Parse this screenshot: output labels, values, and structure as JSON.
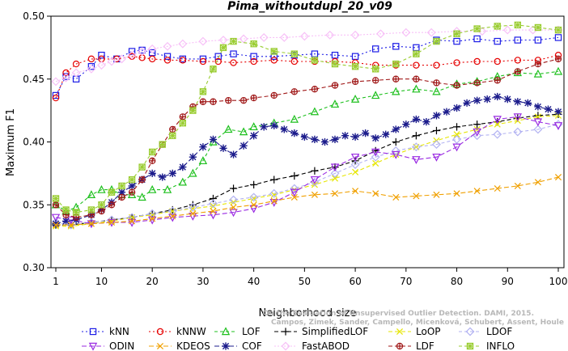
{
  "chart_data": {
    "type": "line",
    "title": "Pima_withoutdupl_20_v09",
    "xlabel": "Neighborhood size",
    "ylabel": "Maximum F1",
    "xlim": [
      1,
      100
    ],
    "ylim": [
      0.3,
      0.5
    ],
    "x_ticks": [
      "1",
      "10",
      "20",
      "30",
      "40",
      "50",
      "60",
      "70",
      "80",
      "90",
      "100"
    ],
    "y_ticks": [
      "0.30",
      "0.35",
      "0.40",
      "0.45",
      "0.50"
    ],
    "grid": false,
    "legend_position": "bottom",
    "watermark": [
      "Campos, Zimek, Sander, Campello, Micenková, Schubert, Assent, Houle",
      "On the Evaluation of Unsupervised Outlier Detection. DAMI, 2015."
    ],
    "series": [
      {
        "name": "kNN",
        "color": "#1c1ce6",
        "marker": "square",
        "dash": "2,3",
        "x": [
          1,
          3,
          5,
          8,
          10,
          13,
          16,
          18,
          20,
          23,
          26,
          30,
          33,
          36,
          40,
          44,
          48,
          52,
          56,
          60,
          64,
          68,
          72,
          76,
          80,
          84,
          88,
          92,
          96,
          100
        ],
        "y": [
          0.437,
          0.452,
          0.45,
          0.46,
          0.469,
          0.466,
          0.472,
          0.473,
          0.471,
          0.468,
          0.466,
          0.466,
          0.468,
          0.47,
          0.468,
          0.468,
          0.469,
          0.47,
          0.469,
          0.468,
          0.474,
          0.476,
          0.475,
          0.481,
          0.48,
          0.482,
          0.48,
          0.481,
          0.481,
          0.483
        ]
      },
      {
        "name": "kNNW",
        "color": "#e60000",
        "marker": "circle",
        "dash": "2,3",
        "x": [
          1,
          3,
          5,
          8,
          10,
          13,
          16,
          18,
          20,
          23,
          26,
          30,
          33,
          36,
          40,
          44,
          48,
          52,
          56,
          60,
          64,
          68,
          72,
          76,
          80,
          84,
          88,
          92,
          96,
          100
        ],
        "y": [
          0.435,
          0.455,
          0.462,
          0.466,
          0.466,
          0.466,
          0.468,
          0.467,
          0.466,
          0.465,
          0.465,
          0.464,
          0.464,
          0.463,
          0.464,
          0.465,
          0.464,
          0.464,
          0.464,
          0.463,
          0.461,
          0.461,
          0.461,
          0.461,
          0.463,
          0.464,
          0.464,
          0.465,
          0.465,
          0.469
        ]
      },
      {
        "name": "LOF",
        "color": "#1fc01f",
        "marker": "triangle",
        "dash": "4,3",
        "x": [
          1,
          3,
          5,
          8,
          10,
          12,
          14,
          16,
          18,
          20,
          23,
          26,
          28,
          30,
          32,
          35,
          38,
          40,
          44,
          48,
          52,
          56,
          60,
          64,
          68,
          72,
          76,
          80,
          84,
          88,
          92,
          96,
          100
        ],
        "y": [
          0.35,
          0.345,
          0.348,
          0.358,
          0.362,
          0.362,
          0.358,
          0.358,
          0.356,
          0.362,
          0.362,
          0.368,
          0.375,
          0.385,
          0.4,
          0.41,
          0.408,
          0.412,
          0.415,
          0.418,
          0.424,
          0.43,
          0.434,
          0.437,
          0.44,
          0.442,
          0.44,
          0.446,
          0.448,
          0.452,
          0.455,
          0.454,
          0.456
        ]
      },
      {
        "name": "SimplifiedLOF",
        "color": "#000000",
        "marker": "plus",
        "dash": "5,3",
        "x": [
          1,
          4,
          8,
          12,
          16,
          20,
          24,
          28,
          32,
          36,
          40,
          44,
          48,
          52,
          56,
          60,
          64,
          68,
          72,
          76,
          80,
          84,
          88,
          92,
          96,
          100
        ],
        "y": [
          0.334,
          0.334,
          0.336,
          0.338,
          0.34,
          0.343,
          0.346,
          0.35,
          0.355,
          0.363,
          0.366,
          0.37,
          0.373,
          0.377,
          0.38,
          0.385,
          0.393,
          0.4,
          0.405,
          0.409,
          0.412,
          0.414,
          0.416,
          0.419,
          0.421,
          0.422
        ]
      },
      {
        "name": "LoOP",
        "color": "#e6e600",
        "marker": "x",
        "dash": "5,3",
        "x": [
          1,
          4,
          8,
          12,
          16,
          20,
          24,
          28,
          32,
          36,
          40,
          44,
          48,
          52,
          56,
          60,
          64,
          68,
          72,
          76,
          80,
          84,
          88,
          92,
          96,
          100
        ],
        "y": [
          0.333,
          0.333,
          0.335,
          0.337,
          0.34,
          0.342,
          0.345,
          0.347,
          0.349,
          0.352,
          0.355,
          0.358,
          0.362,
          0.366,
          0.371,
          0.376,
          0.383,
          0.39,
          0.396,
          0.401,
          0.406,
          0.41,
          0.414,
          0.417,
          0.42,
          0.421
        ]
      },
      {
        "name": "LDOF",
        "color": "#b3b3f2",
        "marker": "diamond",
        "dash": "4,3",
        "x": [
          1,
          4,
          8,
          12,
          16,
          20,
          24,
          28,
          32,
          36,
          40,
          44,
          48,
          52,
          56,
          60,
          64,
          68,
          72,
          76,
          80,
          84,
          88,
          92,
          96,
          100
        ],
        "y": [
          0.336,
          0.334,
          0.336,
          0.338,
          0.34,
          0.343,
          0.345,
          0.348,
          0.351,
          0.354,
          0.356,
          0.359,
          0.363,
          0.368,
          0.375,
          0.382,
          0.388,
          0.393,
          0.396,
          0.398,
          0.402,
          0.405,
          0.406,
          0.408,
          0.41,
          0.414
        ]
      },
      {
        "name": "ODIN",
        "color": "#9a2be2",
        "marker": "triangle-down",
        "dash": "6,3",
        "x": [
          1,
          4,
          8,
          12,
          16,
          20,
          24,
          28,
          32,
          36,
          40,
          44,
          48,
          52,
          56,
          60,
          64,
          68,
          72,
          76,
          80,
          84,
          88,
          92,
          96,
          100
        ],
        "y": [
          0.34,
          0.338,
          0.335,
          0.336,
          0.336,
          0.338,
          0.34,
          0.341,
          0.342,
          0.344,
          0.347,
          0.352,
          0.36,
          0.37,
          0.38,
          0.388,
          0.392,
          0.39,
          0.386,
          0.388,
          0.396,
          0.408,
          0.418,
          0.42,
          0.416,
          0.413
        ]
      },
      {
        "name": "COF",
        "color": "#1c1c8c",
        "marker": "asterisk",
        "dash": "6,3",
        "x": [
          1,
          3,
          5,
          8,
          10,
          12,
          14,
          16,
          18,
          20,
          22,
          24,
          26,
          28,
          30,
          32,
          34,
          36,
          38,
          40,
          42,
          44,
          46,
          48,
          50,
          52,
          54,
          56,
          58,
          60,
          62,
          64,
          66,
          68,
          70,
          72,
          74,
          76,
          78,
          80,
          82,
          84,
          86,
          88,
          90,
          92,
          94,
          96,
          98,
          100
        ],
        "y": [
          0.335,
          0.337,
          0.338,
          0.342,
          0.346,
          0.352,
          0.36,
          0.365,
          0.37,
          0.375,
          0.372,
          0.375,
          0.38,
          0.388,
          0.396,
          0.402,
          0.395,
          0.39,
          0.397,
          0.405,
          0.412,
          0.413,
          0.41,
          0.407,
          0.404,
          0.402,
          0.4,
          0.402,
          0.405,
          0.404,
          0.407,
          0.403,
          0.406,
          0.41,
          0.414,
          0.418,
          0.416,
          0.421,
          0.424,
          0.427,
          0.431,
          0.433,
          0.434,
          0.436,
          0.434,
          0.432,
          0.431,
          0.428,
          0.426,
          0.424
        ]
      },
      {
        "name": "FastABOD",
        "color": "#f7c0f7",
        "marker": "diamond",
        "dash": "2,2",
        "x": [
          1,
          3,
          5,
          8,
          10,
          12,
          14,
          16,
          18,
          20,
          23,
          26,
          30,
          34,
          38,
          42,
          46,
          50,
          55,
          60,
          65,
          70,
          75,
          80,
          85,
          90,
          95,
          100
        ],
        "y": [
          0.448,
          0.451,
          0.455,
          0.458,
          0.461,
          0.464,
          0.466,
          0.469,
          0.472,
          0.474,
          0.476,
          0.478,
          0.48,
          0.481,
          0.482,
          0.483,
          0.483,
          0.484,
          0.485,
          0.485,
          0.486,
          0.487,
          0.487,
          0.488,
          0.488,
          0.489,
          0.489,
          0.489
        ]
      },
      {
        "name": "KDEOS",
        "color": "#f0a000",
        "marker": "x",
        "dash": "6,3",
        "x": [
          1,
          4,
          8,
          12,
          16,
          20,
          24,
          28,
          32,
          36,
          40,
          44,
          48,
          52,
          56,
          60,
          64,
          68,
          72,
          76,
          80,
          84,
          88,
          92,
          96,
          100
        ],
        "y": [
          0.334,
          0.334,
          0.335,
          0.336,
          0.337,
          0.339,
          0.341,
          0.343,
          0.345,
          0.348,
          0.35,
          0.353,
          0.356,
          0.358,
          0.359,
          0.361,
          0.359,
          0.356,
          0.357,
          0.358,
          0.359,
          0.361,
          0.363,
          0.365,
          0.368,
          0.372
        ]
      },
      {
        "name": "LDF",
        "color": "#a01818",
        "marker": "circle-plus",
        "dash": "5,3",
        "x": [
          1,
          3,
          5,
          8,
          10,
          12,
          14,
          16,
          18,
          20,
          22,
          24,
          26,
          28,
          30,
          32,
          35,
          38,
          40,
          44,
          48,
          52,
          56,
          60,
          64,
          68,
          72,
          76,
          80,
          84,
          88,
          92,
          96,
          100
        ],
        "y": [
          0.35,
          0.342,
          0.34,
          0.342,
          0.345,
          0.35,
          0.356,
          0.36,
          0.37,
          0.385,
          0.398,
          0.41,
          0.42,
          0.428,
          0.432,
          0.432,
          0.433,
          0.433,
          0.435,
          0.437,
          0.44,
          0.442,
          0.445,
          0.448,
          0.449,
          0.45,
          0.45,
          0.447,
          0.445,
          0.447,
          0.449,
          0.456,
          0.462,
          0.466
        ]
      },
      {
        "name": "INFLO",
        "color": "#9acd32",
        "marker": "star-square",
        "dash": "4,3",
        "x": [
          1,
          3,
          5,
          8,
          10,
          12,
          14,
          16,
          18,
          20,
          22,
          24,
          26,
          28,
          30,
          32,
          34,
          36,
          40,
          44,
          48,
          52,
          56,
          60,
          64,
          68,
          72,
          76,
          80,
          84,
          88,
          92,
          96,
          100
        ],
        "y": [
          0.355,
          0.346,
          0.344,
          0.346,
          0.35,
          0.36,
          0.365,
          0.37,
          0.38,
          0.392,
          0.398,
          0.405,
          0.415,
          0.425,
          0.44,
          0.458,
          0.475,
          0.48,
          0.478,
          0.472,
          0.47,
          0.465,
          0.462,
          0.46,
          0.458,
          0.462,
          0.47,
          0.48,
          0.486,
          0.49,
          0.492,
          0.493,
          0.491,
          0.489
        ]
      }
    ]
  }
}
